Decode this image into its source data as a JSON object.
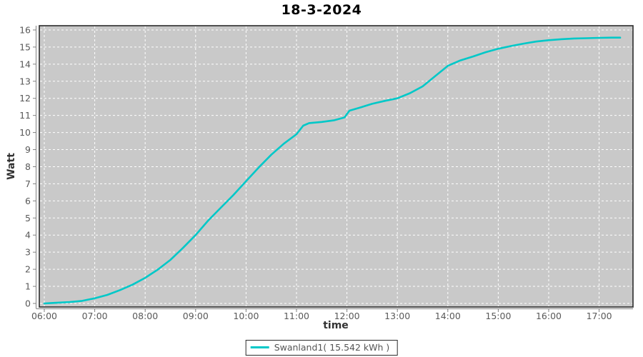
{
  "title": "18-3-2024",
  "colors": {
    "series": "#00c8c8",
    "plot_background": "#c9c9c9",
    "gridline": "#ffffff",
    "plot_border": "#2b2b2b",
    "axis_line": "#808080",
    "tick_label": "#595959",
    "axis_title": "#333333",
    "title_text": "#000000"
  },
  "chart_data": {
    "type": "line",
    "title": "18-3-2024",
    "xlabel": "time",
    "ylabel": "Watt",
    "x_ticks": [
      "06:00",
      "07:00",
      "08:00",
      "09:00",
      "10:00",
      "11:00",
      "12:00",
      "13:00",
      "14:00",
      "15:00",
      "16:00",
      "17:00"
    ],
    "y_ticks": [
      0,
      1,
      2,
      3,
      4,
      5,
      6,
      7,
      8,
      9,
      10,
      11,
      12,
      13,
      14,
      15,
      16
    ],
    "ylim": [
      0,
      16
    ],
    "xlim": [
      "06:00",
      "17:40"
    ],
    "grid": "white dashed gridlines on gray plot background",
    "legend_position": "bottom-center",
    "series": [
      {
        "name": "Swanland1( 15.542 kWh )",
        "color": "#00c8c8",
        "total_kwh": 15.542,
        "points": [
          [
            "06:00",
            0.0
          ],
          [
            "06:10",
            0.03
          ],
          [
            "06:30",
            0.08
          ],
          [
            "06:45",
            0.15
          ],
          [
            "07:00",
            0.3
          ],
          [
            "07:15",
            0.5
          ],
          [
            "07:30",
            0.78
          ],
          [
            "07:45",
            1.1
          ],
          [
            "08:00",
            1.5
          ],
          [
            "08:15",
            1.98
          ],
          [
            "08:30",
            2.55
          ],
          [
            "08:45",
            3.25
          ],
          [
            "09:00",
            4.0
          ],
          [
            "09:15",
            4.85
          ],
          [
            "09:30",
            5.6
          ],
          [
            "09:45",
            6.35
          ],
          [
            "10:00",
            7.15
          ],
          [
            "10:15",
            7.95
          ],
          [
            "10:30",
            8.7
          ],
          [
            "10:45",
            9.35
          ],
          [
            "11:00",
            9.9
          ],
          [
            "11:08",
            10.4
          ],
          [
            "11:15",
            10.55
          ],
          [
            "11:30",
            10.62
          ],
          [
            "11:45",
            10.72
          ],
          [
            "11:57",
            10.88
          ],
          [
            "12:03",
            11.28
          ],
          [
            "12:15",
            11.45
          ],
          [
            "12:30",
            11.68
          ],
          [
            "12:45",
            11.85
          ],
          [
            "13:00",
            12.0
          ],
          [
            "13:15",
            12.3
          ],
          [
            "13:30",
            12.7
          ],
          [
            "13:45",
            13.3
          ],
          [
            "14:00",
            13.9
          ],
          [
            "14:15",
            14.22
          ],
          [
            "14:30",
            14.45
          ],
          [
            "14:45",
            14.7
          ],
          [
            "15:00",
            14.9
          ],
          [
            "15:15",
            15.06
          ],
          [
            "15:30",
            15.2
          ],
          [
            "15:45",
            15.32
          ],
          [
            "16:00",
            15.4
          ],
          [
            "16:15",
            15.46
          ],
          [
            "16:30",
            15.5
          ],
          [
            "16:45",
            15.52
          ],
          [
            "17:00",
            15.54
          ],
          [
            "17:15",
            15.55
          ],
          [
            "17:25",
            15.55
          ]
        ]
      }
    ]
  }
}
